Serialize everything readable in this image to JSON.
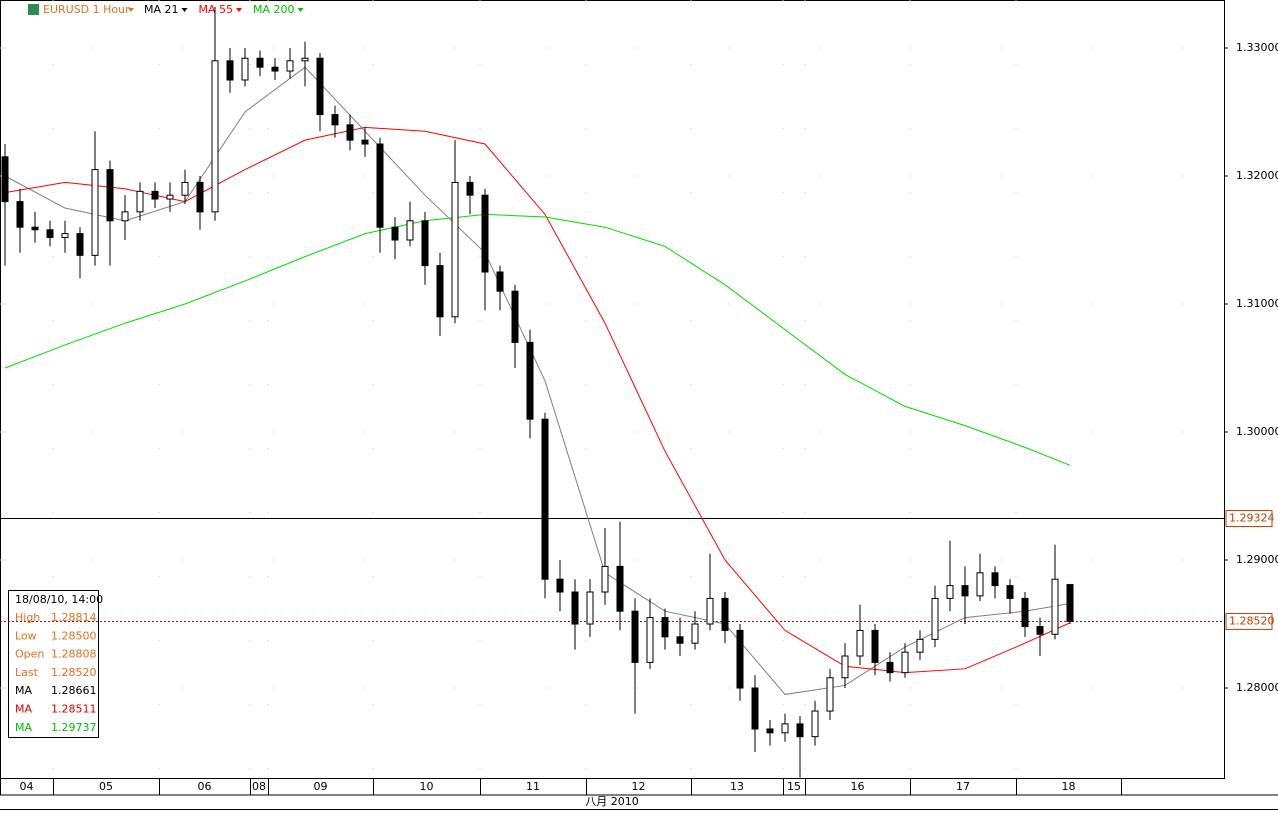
{
  "chart_data": {
    "type": "candlestick",
    "symbol": "EURUSD 1 Hour",
    "ylim": [
      1.27297,
      1.33375
    ],
    "yticks": [
      {
        "value": 1.33,
        "label": "1.33000"
      },
      {
        "value": 1.32,
        "label": "1.32000"
      },
      {
        "value": 1.31,
        "label": "1.31000"
      },
      {
        "value": 1.3,
        "label": "1.30000"
      },
      {
        "value": 1.29,
        "label": "1.29000"
      },
      {
        "value": 1.28,
        "label": "1.28000"
      }
    ],
    "candles": [
      [
        1.3215,
        1.3225,
        1.313,
        1.318
      ],
      [
        1.318,
        1.319,
        1.314,
        1.316
      ],
      [
        1.316,
        1.3172,
        1.3148,
        1.3158
      ],
      [
        1.3158,
        1.3165,
        1.3145,
        1.3152
      ],
      [
        1.3152,
        1.3165,
        1.314,
        1.3155
      ],
      [
        1.3155,
        1.316,
        1.312,
        1.3138
      ],
      [
        1.3138,
        1.3235,
        1.313,
        1.3205
      ],
      [
        1.3205,
        1.3212,
        1.313,
        1.3165
      ],
      [
        1.3165,
        1.3185,
        1.315,
        1.3172
      ],
      [
        1.3172,
        1.3195,
        1.3165,
        1.3188
      ],
      [
        1.3188,
        1.3195,
        1.3175,
        1.3182
      ],
      [
        1.3182,
        1.3195,
        1.3172,
        1.3185
      ],
      [
        1.3185,
        1.3205,
        1.3178,
        1.3195
      ],
      [
        1.3195,
        1.32,
        1.3158,
        1.3172
      ],
      [
        1.3172,
        1.3332,
        1.3165,
        1.329
      ],
      [
        1.329,
        1.33,
        1.3265,
        1.3275
      ],
      [
        1.3275,
        1.33,
        1.327,
        1.3292
      ],
      [
        1.3292,
        1.3298,
        1.3278,
        1.3285
      ],
      [
        1.3285,
        1.3292,
        1.3275,
        1.3282
      ],
      [
        1.3282,
        1.33,
        1.3276,
        1.329
      ],
      [
        1.329,
        1.3305,
        1.327,
        1.3292
      ],
      [
        1.3292,
        1.3296,
        1.3235,
        1.3248
      ],
      [
        1.3248,
        1.3255,
        1.323,
        1.324
      ],
      [
        1.324,
        1.3248,
        1.322,
        1.3228
      ],
      [
        1.3228,
        1.3238,
        1.3215,
        1.3225
      ],
      [
        1.3225,
        1.323,
        1.314,
        1.316
      ],
      [
        1.316,
        1.3168,
        1.3135,
        1.315
      ],
      [
        1.315,
        1.318,
        1.3145,
        1.3165
      ],
      [
        1.3165,
        1.3172,
        1.3115,
        1.313
      ],
      [
        1.313,
        1.314,
        1.3075,
        1.309
      ],
      [
        1.309,
        1.3228,
        1.3085,
        1.3195
      ],
      [
        1.3195,
        1.32,
        1.317,
        1.3185
      ],
      [
        1.3185,
        1.319,
        1.3095,
        1.3125
      ],
      [
        1.3125,
        1.313,
        1.3095,
        1.311
      ],
      [
        1.311,
        1.3115,
        1.305,
        1.307
      ],
      [
        1.307,
        1.308,
        1.2995,
        1.301
      ],
      [
        1.301,
        1.3015,
        1.287,
        1.2885
      ],
      [
        1.2885,
        1.29,
        1.286,
        1.2875
      ],
      [
        1.2875,
        1.2885,
        1.283,
        1.285
      ],
      [
        1.285,
        1.2885,
        1.284,
        1.2875
      ],
      [
        1.2875,
        1.2925,
        1.2865,
        1.2895
      ],
      [
        1.2895,
        1.293,
        1.2845,
        1.286
      ],
      [
        1.286,
        1.287,
        1.278,
        1.282
      ],
      [
        1.282,
        1.287,
        1.2815,
        1.2855
      ],
      [
        1.2855,
        1.2862,
        1.283,
        1.284
      ],
      [
        1.284,
        1.2855,
        1.2825,
        1.2835
      ],
      [
        1.2835,
        1.286,
        1.283,
        1.285
      ],
      [
        1.285,
        1.2905,
        1.2845,
        1.287
      ],
      [
        1.287,
        1.2875,
        1.2835,
        1.2845
      ],
      [
        1.2845,
        1.285,
        1.279,
        1.28
      ],
      [
        1.28,
        1.281,
        1.275,
        1.2768
      ],
      [
        1.2768,
        1.2775,
        1.2755,
        1.2765
      ],
      [
        1.2765,
        1.278,
        1.2758,
        1.2772
      ],
      [
        1.2772,
        1.2778,
        1.273,
        1.2762
      ],
      [
        1.2762,
        1.279,
        1.2755,
        1.2782
      ],
      [
        1.2782,
        1.2815,
        1.2775,
        1.2808
      ],
      [
        1.2808,
        1.2835,
        1.28,
        1.2825
      ],
      [
        1.2825,
        1.2865,
        1.2818,
        1.2845
      ],
      [
        1.2845,
        1.285,
        1.281,
        1.282
      ],
      [
        1.282,
        1.2828,
        1.2805,
        1.2812
      ],
      [
        1.2812,
        1.2835,
        1.2808,
        1.2828
      ],
      [
        1.2828,
        1.2845,
        1.2822,
        1.2838
      ],
      [
        1.2838,
        1.288,
        1.2832,
        1.287
      ],
      [
        1.287,
        1.2915,
        1.286,
        1.288
      ],
      [
        1.288,
        1.2895,
        1.285,
        1.2872
      ],
      [
        1.2872,
        1.2905,
        1.2868,
        1.289
      ],
      [
        1.289,
        1.2895,
        1.287,
        1.288
      ],
      [
        1.288,
        1.2885,
        1.2858,
        1.287
      ],
      [
        1.287,
        1.2875,
        1.284,
        1.2848
      ],
      [
        1.2848,
        1.2855,
        1.2825,
        1.2842
      ],
      [
        1.2842,
        1.2912,
        1.2838,
        1.2885
      ],
      [
        1.28808,
        1.28814,
        1.285,
        1.2852
      ]
    ],
    "series": [
      {
        "name": "MA 21",
        "color": "#000000",
        "line_color": "#808080",
        "x": [
          0,
          4,
          8,
          12,
          16,
          20,
          24,
          28,
          32,
          36,
          40,
          44,
          48,
          52,
          56,
          60,
          64,
          68,
          71
        ],
        "values": [
          1.32,
          1.3175,
          1.3165,
          1.318,
          1.325,
          1.3285,
          1.3235,
          1.3185,
          1.314,
          1.304,
          1.289,
          1.286,
          1.285,
          1.2795,
          1.2802,
          1.2832,
          1.2855,
          1.286,
          1.2866
        ]
      },
      {
        "name": "MA 55",
        "color": "#ff0000",
        "line_color": "#ff0000",
        "x": [
          0,
          4,
          8,
          12,
          16,
          20,
          24,
          28,
          32,
          36,
          40,
          44,
          48,
          52,
          56,
          60,
          64,
          68,
          71
        ],
        "values": [
          1.3187,
          1.3195,
          1.319,
          1.318,
          1.3205,
          1.3228,
          1.3238,
          1.3235,
          1.3225,
          1.317,
          1.3085,
          1.2985,
          1.29,
          1.2845,
          1.2817,
          1.2812,
          1.2815,
          1.2835,
          1.2851
        ]
      },
      {
        "name": "MA 200",
        "color": "#00c000",
        "line_color": "#00dd00",
        "x": [
          0,
          4,
          8,
          12,
          16,
          20,
          24,
          28,
          32,
          36,
          40,
          44,
          48,
          52,
          56,
          60,
          64,
          68,
          71
        ],
        "values": [
          1.305,
          1.3068,
          1.3085,
          1.31,
          1.3118,
          1.3137,
          1.3155,
          1.3165,
          1.317,
          1.3168,
          1.316,
          1.3145,
          1.3115,
          1.308,
          1.3045,
          1.302,
          1.3005,
          1.2988,
          1.2974
        ]
      }
    ],
    "price_lines": [
      {
        "value": 1.29324,
        "label": "1.29324"
      },
      {
        "value": 1.2852,
        "label": "1.28520"
      }
    ],
    "x_labels": [
      "04",
      "05",
      "06",
      "08",
      "09",
      "10",
      "11",
      "12",
      "13",
      "15",
      "16",
      "17",
      "18"
    ],
    "x_title": "八月 2010",
    "info": {
      "title": "18/08/10, 14:00",
      "rows": [
        [
          "High",
          "1.28814"
        ],
        [
          "Low",
          "1.28500"
        ],
        [
          "Open",
          "1.28808"
        ],
        [
          "Last",
          "1.28520"
        ],
        [
          "MA",
          "1.28661"
        ],
        [
          "MA",
          "1.28511"
        ],
        [
          "MA",
          "1.29737"
        ]
      ]
    }
  }
}
